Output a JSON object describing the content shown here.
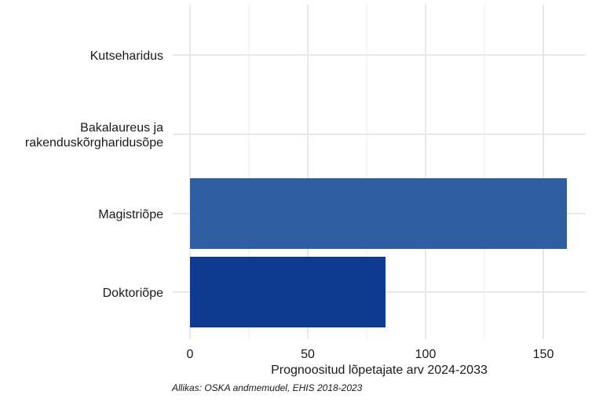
{
  "chart_data": {
    "type": "bar",
    "orientation": "horizontal",
    "categories": [
      [
        "Kutseharidus"
      ],
      [
        "Bakalaureus ja",
        "rakenduskõrgharidusõpe"
      ],
      [
        "Magistriõpe"
      ],
      [
        "Doktoriõpe"
      ]
    ],
    "values": [
      0,
      0,
      160,
      83
    ],
    "colors": [
      "#2e5fa3",
      "#2e5fa3",
      "#2e5fa3",
      "#0c3b8f"
    ],
    "xlabel": "Prognoositud lõpetajate arv 2024-2033",
    "xticks": [
      0,
      50,
      100,
      150
    ],
    "xlim": [
      0,
      168
    ],
    "grid": true
  },
  "caption": "Allikas: OSKA andmemudel, EHIS 2018-2023"
}
